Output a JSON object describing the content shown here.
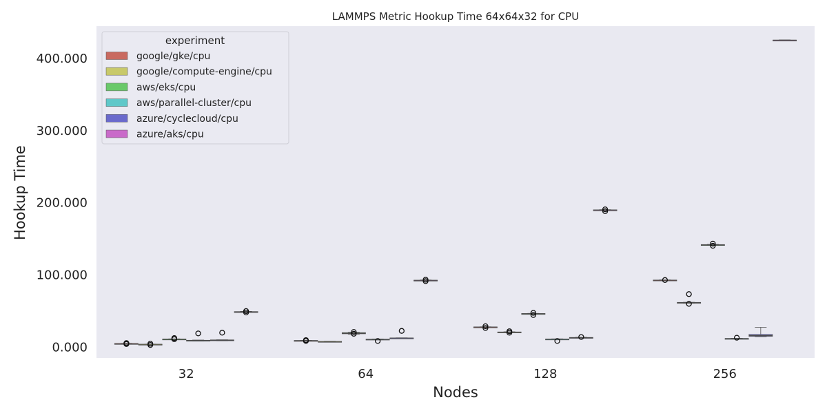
{
  "chart_data": {
    "type": "box",
    "title": "LAMMPS Metric Hookup Time 64x64x32 for CPU",
    "xlabel": "Nodes",
    "ylabel": "Hookup Time",
    "categories": [
      "32",
      "64",
      "128",
      "256"
    ],
    "ylim": [
      -15,
      445
    ],
    "yticks": [
      0,
      100,
      200,
      300,
      400
    ],
    "ytick_labels": [
      "0.000",
      "100.000",
      "200.000",
      "300.000",
      "400.000"
    ],
    "grid": false,
    "legend": {
      "title": "experiment",
      "placement": "top-left"
    },
    "series": [
      {
        "name": "google/gke/cpu",
        "color": "#c96a60",
        "boxes": [
          {
            "category": "32",
            "q1": 4.6,
            "median": 4.8,
            "q3": 5.0,
            "whislo": 4.4,
            "whishi": 5.2,
            "fliers": [
              4.3,
              5.6
            ]
          },
          {
            "category": "64",
            "q1": 8.9,
            "median": 9.0,
            "q3": 9.2,
            "whislo": 8.8,
            "whishi": 9.3,
            "fliers": [
              8.5,
              9.7
            ]
          },
          {
            "category": "128",
            "q1": 27.5,
            "median": 27.8,
            "q3": 28.0,
            "whislo": 27.3,
            "whishi": 28.2,
            "fliers": [
              26.5,
              29.0
            ]
          },
          {
            "category": "256",
            "q1": 92.6,
            "median": 92.8,
            "q3": 93.0,
            "whislo": 92.4,
            "whishi": 93.2,
            "fliers": [
              93.0
            ]
          }
        ]
      },
      {
        "name": "google/compute-engine/cpu",
        "color": "#c8c96a",
        "boxes": [
          {
            "category": "32",
            "q1": 3.6,
            "median": 3.8,
            "q3": 4.0,
            "whislo": 3.4,
            "whishi": 4.2,
            "fliers": [
              3.0,
              4.8
            ]
          },
          {
            "category": "64",
            "q1": 7.5,
            "median": 7.7,
            "q3": 7.9,
            "whislo": 7.3,
            "whishi": 8.1,
            "fliers": []
          },
          {
            "category": "128",
            "q1": 20.5,
            "median": 20.8,
            "q3": 21.0,
            "whislo": 20.3,
            "whishi": 21.2,
            "fliers": [
              20.0,
              22.0
            ]
          },
          {
            "category": "256",
            "q1": 61.0,
            "median": 61.5,
            "q3": 62.0,
            "whislo": 60.8,
            "whishi": 62.2,
            "fliers": [
              60.0,
              73.5
            ]
          }
        ]
      },
      {
        "name": "aws/eks/cpu",
        "color": "#6ac96a",
        "boxes": [
          {
            "category": "32",
            "q1": 10.8,
            "median": 11.0,
            "q3": 11.2,
            "whislo": 10.6,
            "whishi": 11.4,
            "fliers": [
              11.0,
              12.5
            ]
          },
          {
            "category": "64",
            "q1": 18.5,
            "median": 19.2,
            "q3": 20.0,
            "whislo": 18.0,
            "whishi": 20.5,
            "fliers": [
              18.5,
              21.0
            ]
          },
          {
            "category": "128",
            "q1": 45.8,
            "median": 46.2,
            "q3": 46.6,
            "whislo": 45.5,
            "whishi": 46.8,
            "fliers": [
              44.5,
              47.5
            ]
          },
          {
            "category": "256",
            "q1": 141.5,
            "median": 141.8,
            "q3": 142.1,
            "whislo": 141.2,
            "whishi": 142.4,
            "fliers": [
              140.5,
              143.5
            ]
          }
        ]
      },
      {
        "name": "aws/parallel-cluster/cpu",
        "color": "#5fc8c9",
        "boxes": [
          {
            "category": "32",
            "q1": 8.5,
            "median": 9.0,
            "q3": 9.5,
            "whislo": 8.3,
            "whishi": 9.8,
            "fliers": [
              19.0
            ]
          },
          {
            "category": "64",
            "q1": 10.5,
            "median": 10.8,
            "q3": 11.0,
            "whislo": 10.3,
            "whishi": 11.2,
            "fliers": [
              8.5
            ]
          },
          {
            "category": "128",
            "q1": 10.8,
            "median": 11.0,
            "q3": 11.2,
            "whislo": 10.6,
            "whishi": 11.4,
            "fliers": [
              8.5
            ]
          },
          {
            "category": "256",
            "q1": 11.5,
            "median": 11.8,
            "q3": 12.0,
            "whislo": 11.3,
            "whishi": 12.2,
            "fliers": [
              13.0
            ]
          }
        ]
      },
      {
        "name": "azure/cyclecloud/cpu",
        "color": "#6a6acc",
        "boxes": [
          {
            "category": "32",
            "q1": 9.0,
            "median": 9.5,
            "q3": 10.0,
            "whislo": 8.8,
            "whishi": 10.2,
            "fliers": [
              20.0
            ]
          },
          {
            "category": "64",
            "q1": 12.3,
            "median": 12.5,
            "q3": 12.7,
            "whislo": 12.1,
            "whishi": 12.9,
            "fliers": [
              22.5
            ]
          },
          {
            "category": "128",
            "q1": 13.0,
            "median": 13.2,
            "q3": 13.4,
            "whislo": 12.8,
            "whishi": 13.6,
            "fliers": [
              14.0
            ]
          },
          {
            "category": "256",
            "q1": 15.0,
            "median": 16.0,
            "q3": 17.5,
            "whislo": 14.5,
            "whishi": 27.5,
            "fliers": []
          }
        ]
      },
      {
        "name": "azure/aks/cpu",
        "color": "#c96ac9",
        "boxes": [
          {
            "category": "32",
            "q1": 48.5,
            "median": 48.8,
            "q3": 49.2,
            "whislo": 48.3,
            "whishi": 49.5,
            "fliers": [
              48.0,
              50.0
            ]
          },
          {
            "category": "64",
            "q1": 92.2,
            "median": 92.5,
            "q3": 92.8,
            "whislo": 92.0,
            "whishi": 93.0,
            "fliers": [
              91.5,
              93.5
            ]
          },
          {
            "category": "128",
            "q1": 189.8,
            "median": 190.0,
            "q3": 190.3,
            "whislo": 189.5,
            "whishi": 190.5,
            "fliers": [
              188.5,
              191.0
            ]
          },
          {
            "category": "256",
            "q1": 425.3,
            "median": 425.5,
            "q3": 425.7,
            "whislo": 425.1,
            "whishi": 425.9,
            "fliers": []
          }
        ]
      }
    ]
  }
}
